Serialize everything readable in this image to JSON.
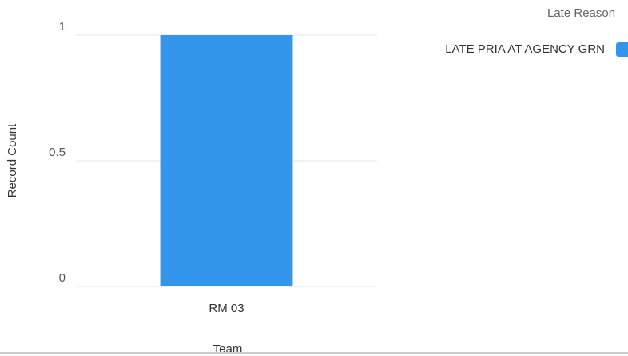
{
  "chart_data": {
    "type": "bar",
    "xlabel": "Team",
    "ylabel": "Record Count",
    "legend_title": "Late Reason",
    "categories": [
      "RM 03"
    ],
    "series": [
      {
        "name": "LATE PRIA AT AGENCY GRN",
        "color": "#3396eb",
        "values": [
          1
        ]
      }
    ],
    "ylim": [
      0,
      1
    ],
    "yticks": [
      0,
      0.5,
      1
    ],
    "grid": true,
    "legend": "right"
  }
}
